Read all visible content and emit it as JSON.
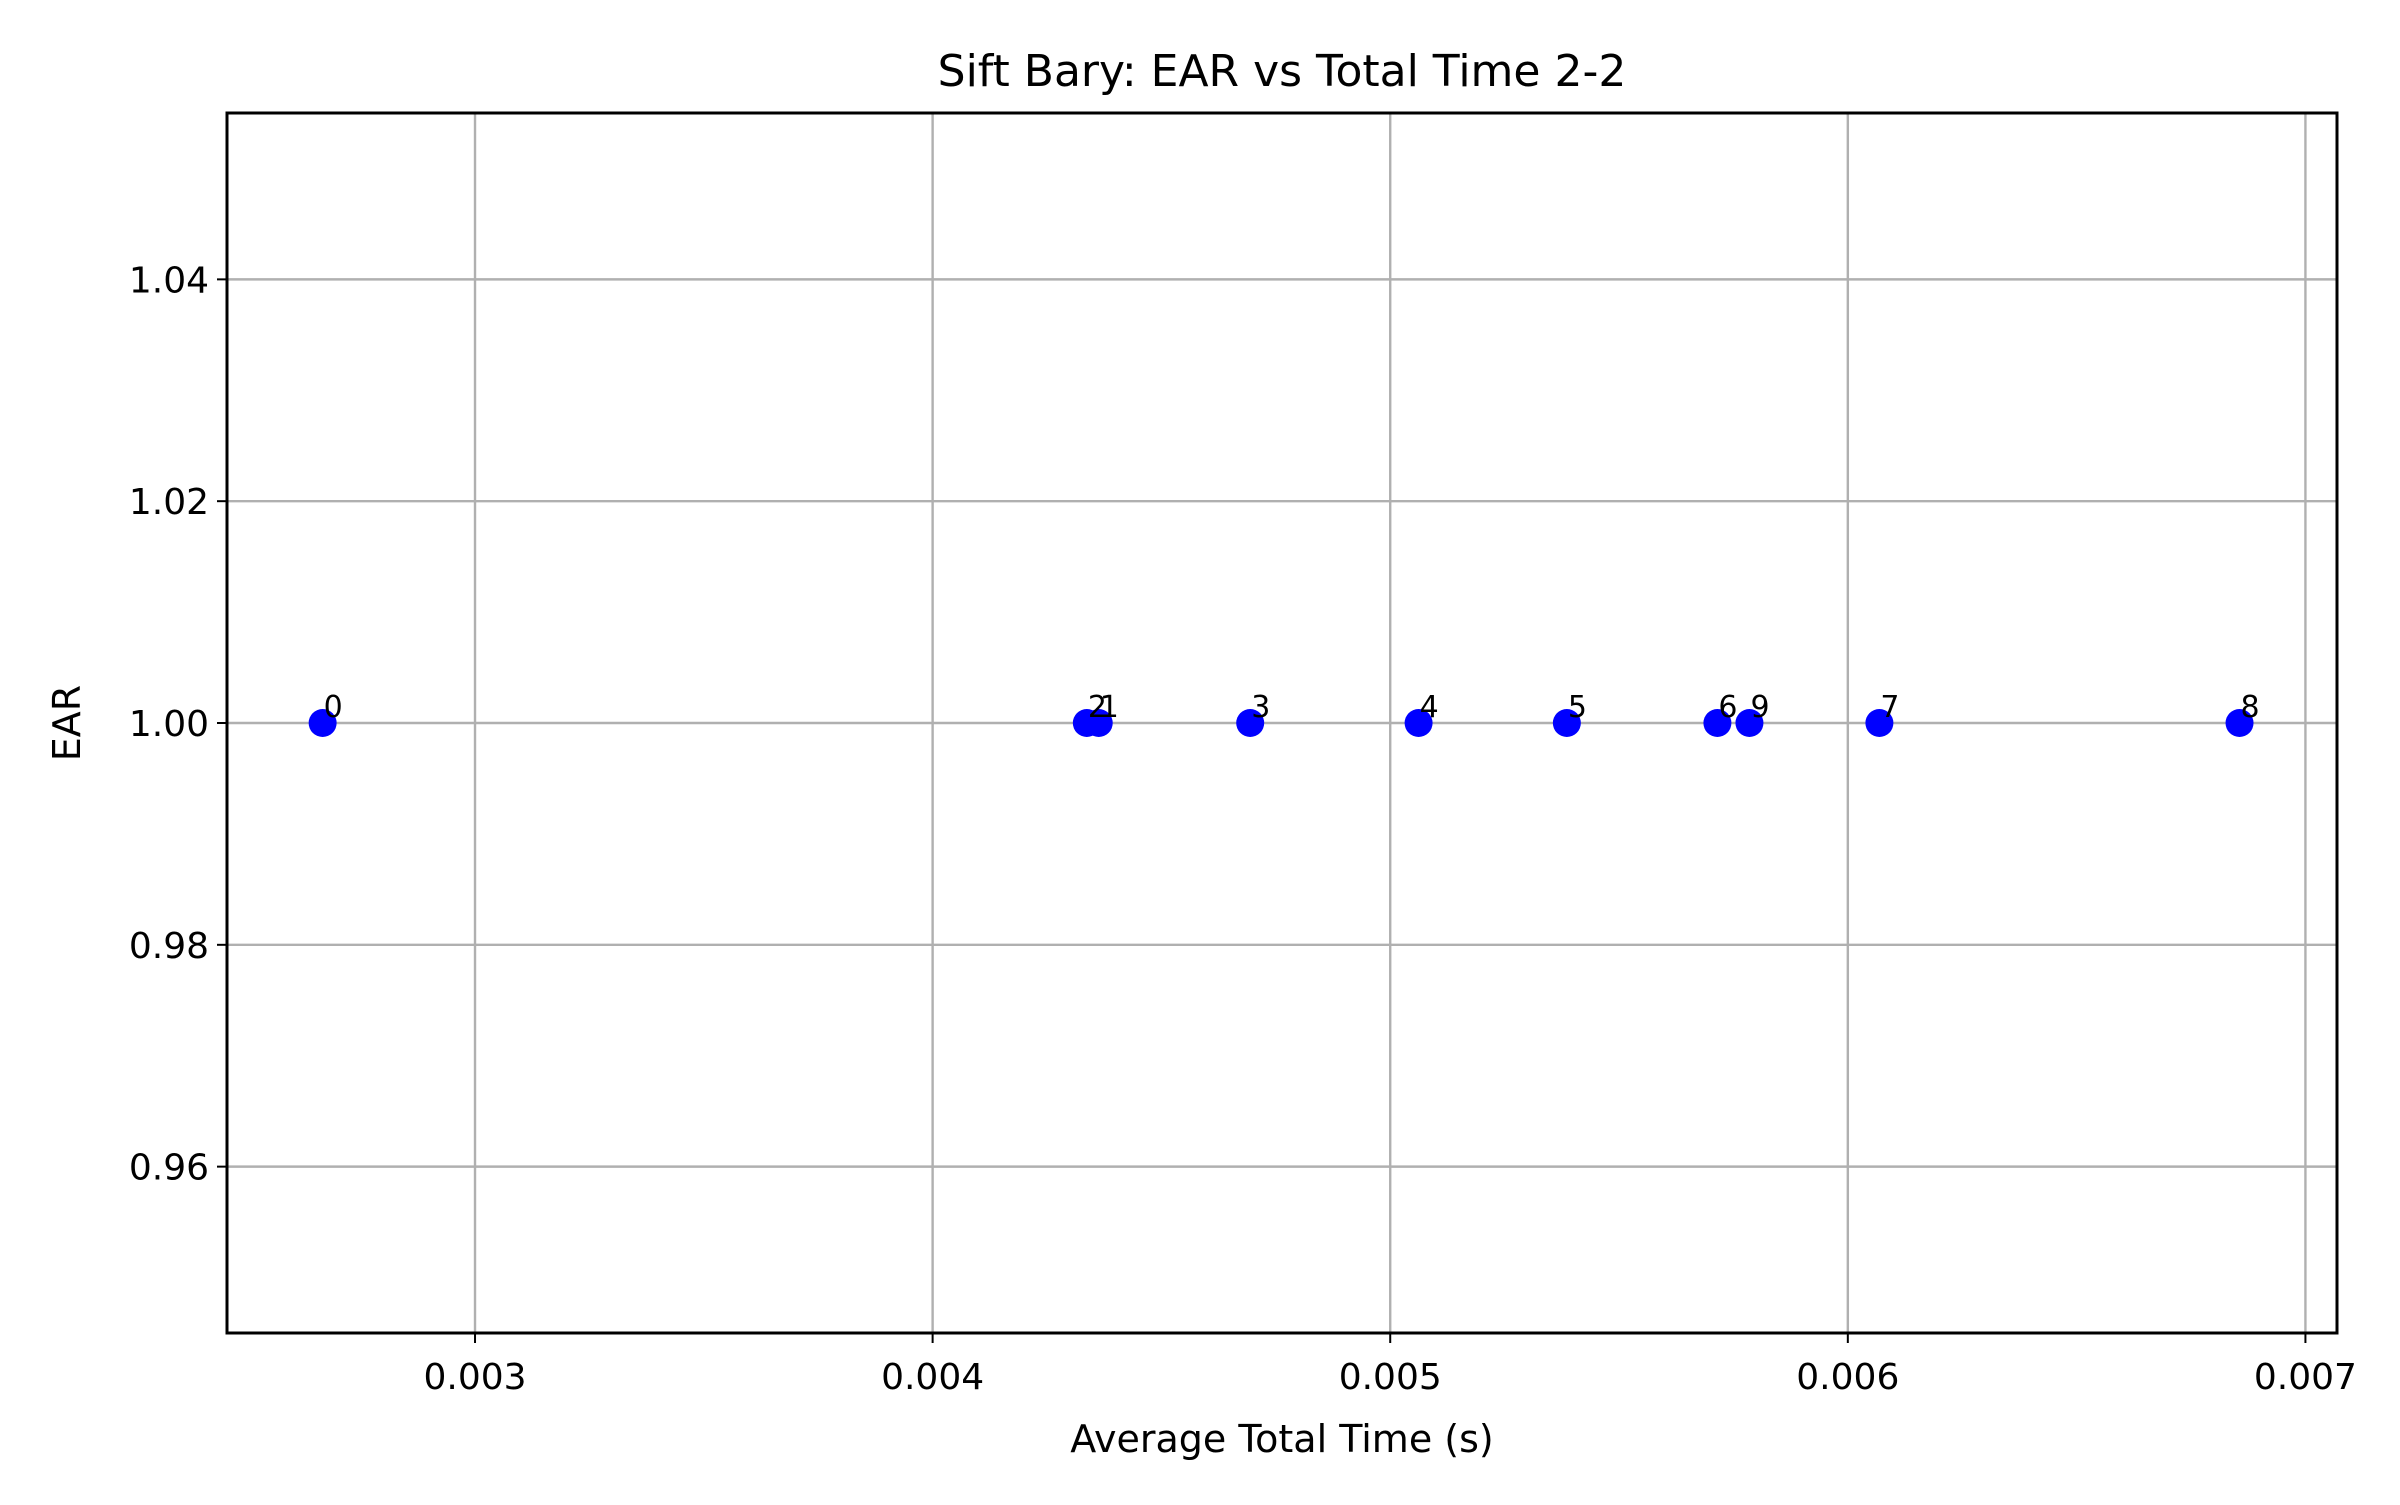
{
  "chart_data": {
    "type": "scatter",
    "title": "Sift Bary: EAR vs Total Time 2-2",
    "xlabel": "Average Total Time (s)",
    "ylabel": "EAR",
    "xlim": [
      0.002458,
      0.007069
    ],
    "ylim": [
      0.945,
      1.055
    ],
    "xticks": [
      0.003,
      0.004,
      0.005,
      0.006,
      0.007
    ],
    "xtick_labels": [
      "0.003",
      "0.004",
      "0.005",
      "0.006",
      "0.007"
    ],
    "yticks": [
      0.96,
      0.98,
      1.0,
      1.02,
      1.04
    ],
    "ytick_labels": [
      "0.96",
      "0.98",
      "1.00",
      "1.02",
      "1.04"
    ],
    "grid": true,
    "marker_color": "#0000ff",
    "points": [
      {
        "label": "0",
        "x": 0.002667,
        "y": 1.0
      },
      {
        "label": "1",
        "x": 0.004363,
        "y": 1.0
      },
      {
        "label": "2",
        "x": 0.004337,
        "y": 1.0
      },
      {
        "label": "3",
        "x": 0.004694,
        "y": 1.0
      },
      {
        "label": "4",
        "x": 0.005062,
        "y": 1.0
      },
      {
        "label": "5",
        "x": 0.005386,
        "y": 1.0
      },
      {
        "label": "6",
        "x": 0.005715,
        "y": 1.0
      },
      {
        "label": "7",
        "x": 0.006069,
        "y": 1.0
      },
      {
        "label": "8",
        "x": 0.006856,
        "y": 1.0
      },
      {
        "label": "9",
        "x": 0.005785,
        "y": 1.0
      }
    ]
  }
}
